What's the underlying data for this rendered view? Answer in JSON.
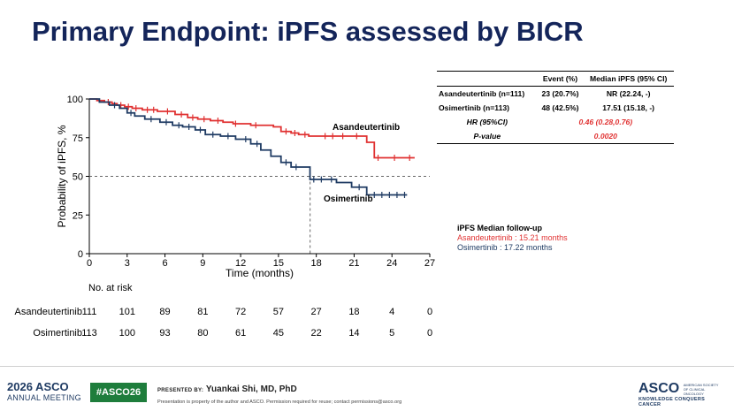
{
  "slide": {
    "title": "Primary Endpoint: iPFS assessed by BICR"
  },
  "chart_data": {
    "type": "line",
    "title": "",
    "xlabel": "Time (months)",
    "ylabel": "Probability of iPFS, %",
    "xlim": [
      0,
      27
    ],
    "ylim": [
      0,
      100
    ],
    "xticks": [
      "0",
      "3",
      "6",
      "9",
      "12",
      "15",
      "18",
      "21",
      "24",
      "27"
    ],
    "yticks": [
      "0",
      "25",
      "50",
      "75",
      "100"
    ],
    "reference": {
      "median_y": 50,
      "median_x": 17.51
    },
    "series": [
      {
        "name": "Asandeutertinib",
        "color": "#e03131",
        "x": [
          0,
          0.6,
          1.2,
          1.8,
          2.2,
          2.8,
          3.4,
          4.2,
          5.4,
          6.8,
          7.8,
          8.6,
          9.6,
          10.6,
          11.4,
          12.8,
          14.6,
          15.2,
          16,
          16.6,
          17.4,
          18.2,
          22,
          22.6,
          25.8
        ],
        "y": [
          100,
          99,
          98,
          97,
          96,
          95,
          94,
          93,
          92,
          90,
          88,
          87,
          86,
          85,
          84,
          83,
          82,
          79,
          78,
          77,
          76,
          76,
          72,
          62,
          62
        ],
        "censor_x": [
          1.5,
          2.5,
          3.1,
          3.7,
          4.6,
          5.1,
          6.2,
          7.3,
          8.2,
          9.1,
          10.2,
          11.6,
          13.2,
          15.6,
          16.3,
          17.1,
          18.7,
          19.3,
          20.1,
          21.2,
          22.9,
          24.2,
          25.4
        ]
      },
      {
        "name": "Osimertinib",
        "color": "#1f3b63",
        "x": [
          0,
          0.8,
          1.6,
          2.4,
          3.0,
          3.6,
          4.4,
          5.6,
          6.6,
          7.4,
          8.4,
          9.2,
          10.4,
          11.6,
          12.8,
          13.6,
          14.4,
          15.2,
          16.0,
          17.5,
          19.6,
          20.8,
          22.0,
          25.2
        ],
        "y": [
          100,
          98,
          96,
          94,
          91,
          89,
          87,
          85,
          83,
          82,
          80,
          77,
          76,
          74,
          71,
          67,
          63,
          59,
          56,
          48,
          46,
          43,
          38,
          38
        ],
        "censor_x": [
          2.0,
          3.3,
          4.9,
          6.1,
          7.1,
          7.9,
          8.8,
          9.8,
          11.0,
          12.4,
          13.3,
          15.6,
          16.4,
          17.8,
          18.4,
          19.2,
          21.4,
          22.6,
          23.2,
          23.8,
          24.4,
          25.0
        ]
      }
    ],
    "annotations": [
      "Asandeutertinib",
      "Osimertinib"
    ]
  },
  "stats_table": {
    "headers": [
      "",
      "Event (%)",
      "Median iPFS (95% CI)"
    ],
    "rows": [
      {
        "label": "Asandeutertinib (n=111)",
        "event": "23 (20.7%)",
        "median": "NR (22.24, -)"
      },
      {
        "label": "Osimertinib (n=113)",
        "event": "48 (42.5%)",
        "median": "17.51 (15.18, -)"
      }
    ],
    "hr_label": "HR (95%CI)",
    "hr_value": "0.46 (0.28,0.76)",
    "p_label": "P-value",
    "p_value": "0.0020"
  },
  "followup": {
    "heading": "iPFS Median follow-up",
    "asandeutertinib": "Asandeutertinib : 15.21 months",
    "osimertinib": "Osimertinib : 17.22 months"
  },
  "risk_table": {
    "title": "No. at risk",
    "rows": [
      {
        "name": "Asandeutertinib",
        "values": [
          "111",
          "101",
          "89",
          "81",
          "72",
          "57",
          "27",
          "18",
          "4",
          "0"
        ]
      },
      {
        "name": "Osimertinib",
        "values": [
          "113",
          "100",
          "93",
          "80",
          "61",
          "45",
          "22",
          "14",
          "5",
          "0"
        ]
      }
    ]
  },
  "footer": {
    "meeting_year": "2026 ASCO",
    "meeting_sub": "ANNUAL MEETING",
    "hashtag": "#ASCO26",
    "presented_by": "PRESENTED BY:",
    "presenter": "Yuankai Shi, MD, PhD",
    "notice": "Presentation is property of the author and ASCO. Permission required for reuse; contact permissions@asco.org",
    "org_logo": "ASCO",
    "org_full": "AMERICAN SOCIETY OF CLINICAL ONCOLOGY",
    "tagline": "KNOWLEDGE CONQUERS CANCER"
  }
}
